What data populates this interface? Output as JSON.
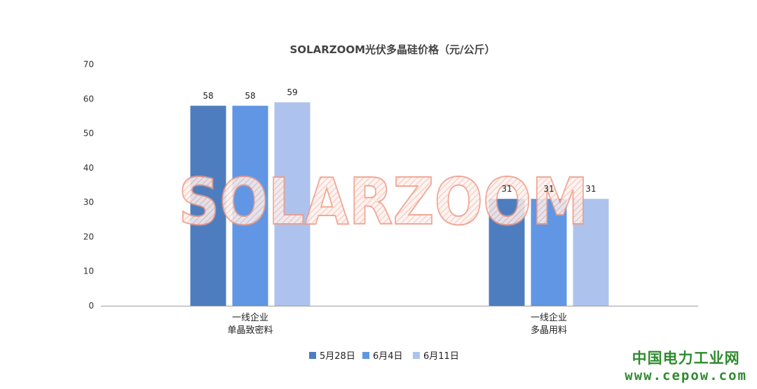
{
  "chart_data": {
    "type": "bar",
    "title": "SOLARZOOM光伏多晶硅价格（元/公斤）",
    "categories": [
      [
        "一线企业",
        "单晶致密料"
      ],
      [
        "一线企业",
        "多晶用料"
      ]
    ],
    "series": [
      {
        "name": "5月28日",
        "color": "#4e7dbf",
        "values": [
          58,
          31
        ]
      },
      {
        "name": "6月4日",
        "color": "#6096e4",
        "values": [
          58,
          31
        ]
      },
      {
        "name": "6月11日",
        "color": "#adc3ed",
        "values": [
          59,
          31
        ]
      }
    ],
    "ylim": [
      0,
      70
    ],
    "yticks": [
      0,
      10,
      20,
      30,
      40,
      50,
      60,
      70
    ],
    "xlabel": "",
    "ylabel": "",
    "grid": false,
    "legend_position": "bottom"
  },
  "watermark": "SOLARZOOM",
  "source": {
    "name": "中国电力工业网",
    "url": "www.cepow.com"
  }
}
